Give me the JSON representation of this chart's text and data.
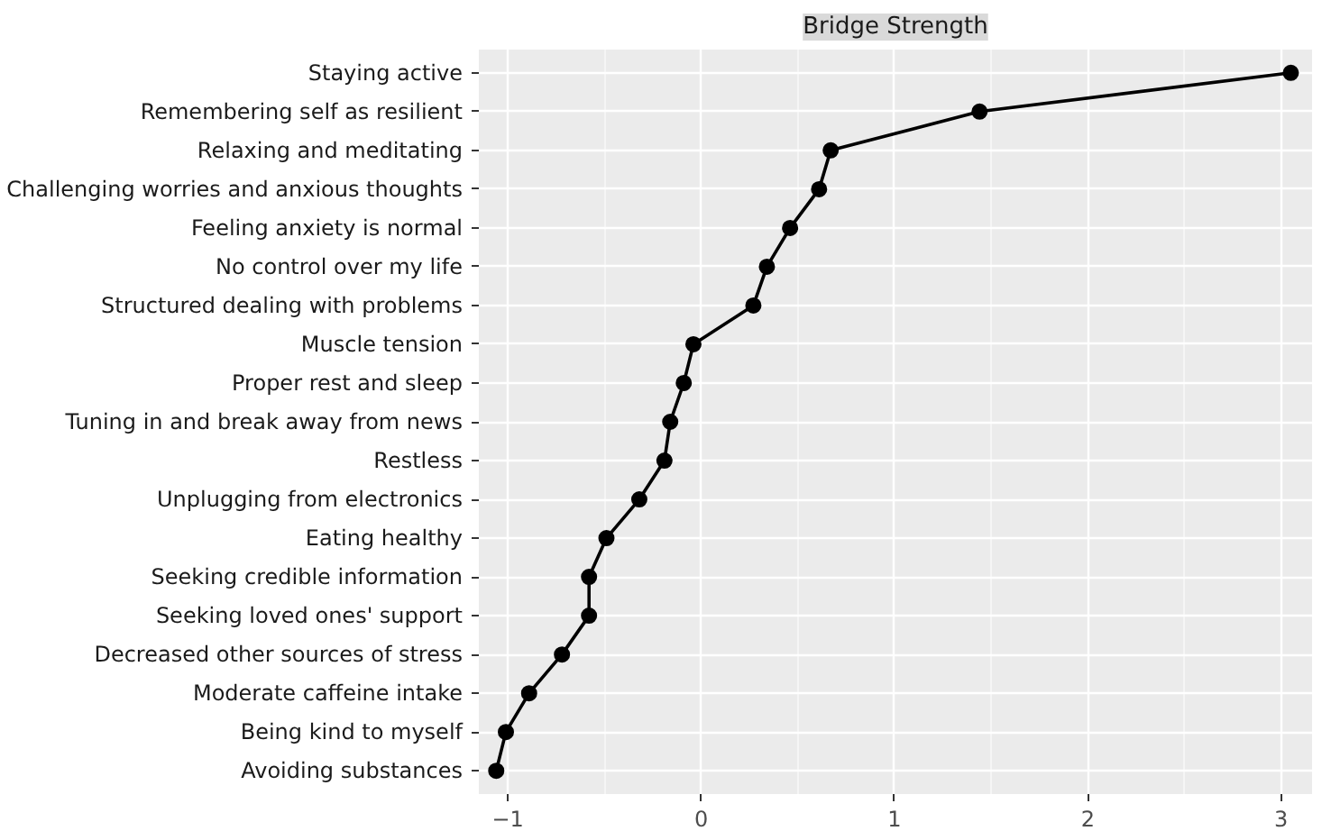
{
  "chart_data": {
    "type": "line",
    "orientation": "horizontal",
    "title": "Bridge Strength",
    "categories": [
      "Staying active",
      "Remembering self as resilient",
      "Relaxing and meditating",
      "Challenging worries and anxious thoughts",
      "Feeling anxiety is normal",
      "No control over my life",
      "Structured dealing with problems",
      "Muscle tension",
      "Proper rest and sleep",
      "Tuning in and break away from news",
      "Restless",
      "Unplugging from electronics",
      "Eating healthy",
      "Seeking credible information",
      "Seeking loved ones' support",
      "Decreased other sources of stress",
      "Moderate caffeine intake",
      "Being kind to myself",
      "Avoiding substances"
    ],
    "series": [
      {
        "color": "#000000",
        "values": [
          3.05,
          1.44,
          0.67,
          0.61,
          0.46,
          0.34,
          0.27,
          -0.04,
          -0.09,
          -0.16,
          -0.19,
          -0.32,
          -0.49,
          -0.58,
          -0.58,
          -0.72,
          -0.89,
          -1.01,
          -1.06
        ]
      }
    ],
    "xlim": [
      -1.15,
      3.16
    ],
    "xticks": [
      {
        "value": -1,
        "label": "−1"
      },
      0,
      1,
      2,
      3
    ],
    "grid": true,
    "marker": "circle",
    "line_style": "solid"
  }
}
